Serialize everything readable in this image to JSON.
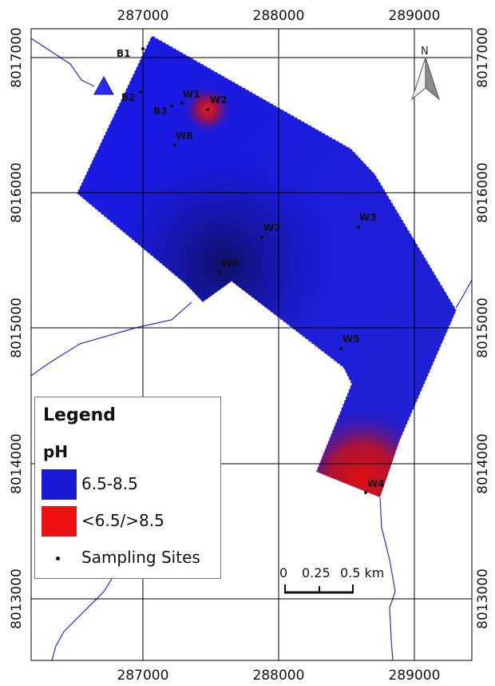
{
  "map": {
    "x_ticks": [
      "287000",
      "288000",
      "289000"
    ],
    "y_ticks": [
      "8017000",
      "8016000",
      "8015000",
      "8014000",
      "8013000"
    ],
    "north_label": "N"
  },
  "sites": [
    {
      "id": "B1"
    },
    {
      "id": "B2"
    },
    {
      "id": "B3"
    },
    {
      "id": "W1"
    },
    {
      "id": "W2"
    },
    {
      "id": "W8"
    },
    {
      "id": "W7"
    },
    {
      "id": "W3"
    },
    {
      "id": "W6"
    },
    {
      "id": "W5"
    },
    {
      "id": "W4"
    }
  ],
  "legend": {
    "title": "Legend",
    "subtitle": "pH",
    "items": [
      {
        "label": "6.5-8.5",
        "color": "#1a1ad6"
      },
      {
        "label": "<6.5/>8.5",
        "color": "#ee1111"
      },
      {
        "label": "Sampling Sites"
      }
    ]
  },
  "scale_bar": {
    "labels": [
      "0",
      "0.25",
      "0.5 km"
    ]
  }
}
